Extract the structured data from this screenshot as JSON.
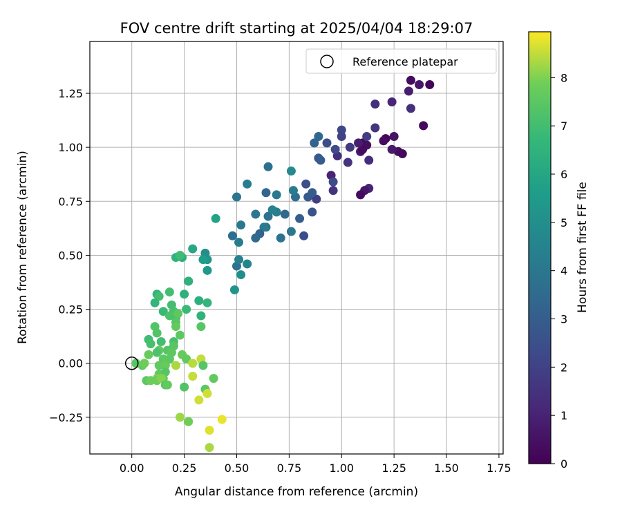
{
  "chart_data": {
    "type": "scatter",
    "title": "FOV centre drift starting at 2025/04/04 18:29:07",
    "xlabel": "Angular distance from reference (arcmin)",
    "ylabel": "Rotation from reference (arcmin)",
    "xlim": [
      -0.2,
      1.77
    ],
    "ylim": [
      -0.42,
      1.49
    ],
    "x_ticks": [
      0.0,
      0.25,
      0.5,
      0.75,
      1.0,
      1.25,
      1.5,
      1.75
    ],
    "x_tick_labels": [
      "0.00",
      "0.25",
      "0.50",
      "0.75",
      "1.00",
      "1.25",
      "1.50",
      "1.75"
    ],
    "y_ticks": [
      -0.25,
      0.0,
      0.25,
      0.5,
      0.75,
      1.0,
      1.25
    ],
    "y_tick_labels": [
      "−0.25",
      "0.00",
      "0.25",
      "0.50",
      "0.75",
      "1.00",
      "1.25"
    ],
    "grid": true,
    "legend": {
      "placement": "top-right",
      "entries": [
        {
          "label": "Reference platepar",
          "marker": "open-circle"
        }
      ]
    },
    "reference_point": {
      "x": 0.0,
      "y": 0.0
    },
    "colorbar": {
      "label": "Hours from first FF file",
      "range": [
        0,
        8.95
      ],
      "ticks": [
        0,
        1,
        2,
        3,
        4,
        5,
        6,
        7,
        8
      ],
      "tick_labels": [
        "0",
        "1",
        "2",
        "3",
        "4",
        "5",
        "6",
        "7",
        "8"
      ],
      "colormap": "viridis"
    },
    "series": [
      {
        "color_by": "hours",
        "points": [
          [
            1.42,
            1.29,
            0.1
          ],
          [
            1.33,
            1.31,
            0.3
          ],
          [
            1.37,
            1.29,
            0.6
          ],
          [
            1.39,
            1.1,
            0.3
          ],
          [
            1.32,
            1.26,
            0.8
          ],
          [
            1.33,
            1.18,
            1.4
          ],
          [
            1.24,
            1.21,
            1.1
          ],
          [
            1.16,
            1.2,
            1.3
          ],
          [
            1.27,
            0.98,
            0.4
          ],
          [
            1.29,
            0.97,
            0.2
          ],
          [
            1.25,
            1.05,
            0.5
          ],
          [
            1.21,
            1.04,
            0.2
          ],
          [
            1.2,
            1.03,
            0.3
          ],
          [
            1.24,
            0.99,
            0.7
          ],
          [
            1.1,
            1.02,
            0.2
          ],
          [
            1.12,
            1.01,
            0.4
          ],
          [
            1.09,
            0.98,
            0.6
          ],
          [
            1.1,
            0.99,
            0.3
          ],
          [
            1.08,
            1.02,
            0.8
          ],
          [
            1.13,
            0.94,
            1.3
          ],
          [
            1.13,
            0.81,
            1.0
          ],
          [
            1.11,
            0.8,
            0.6
          ],
          [
            1.09,
            0.78,
            0.3
          ],
          [
            1.16,
            1.09,
            1.6
          ],
          [
            1.12,
            1.05,
            1.8
          ],
          [
            1.04,
            1.0,
            1.7
          ],
          [
            1.03,
            0.93,
            1.5
          ],
          [
            1.0,
            1.08,
            2.2
          ],
          [
            1.0,
            1.05,
            2.0
          ],
          [
            0.98,
            0.96,
            1.4
          ],
          [
            0.95,
            0.87,
            1.0
          ],
          [
            0.96,
            0.8,
            1.5
          ],
          [
            0.96,
            0.84,
            2.3
          ],
          [
            0.97,
            0.99,
            2.3
          ],
          [
            0.93,
            1.02,
            2.4
          ],
          [
            0.89,
            0.95,
            2.8
          ],
          [
            0.9,
            0.94,
            2.9
          ],
          [
            0.89,
            1.05,
            3.4
          ],
          [
            0.87,
            1.02,
            3.2
          ],
          [
            0.88,
            0.76,
            1.9
          ],
          [
            0.83,
            0.83,
            2.5
          ],
          [
            0.84,
            0.77,
            2.8
          ],
          [
            0.86,
            0.79,
            3.0
          ],
          [
            0.86,
            0.7,
            2.6
          ],
          [
            0.82,
            0.59,
            2.4
          ],
          [
            0.8,
            0.67,
            3.0
          ],
          [
            0.78,
            0.77,
            3.6
          ],
          [
            0.77,
            0.8,
            4.2
          ],
          [
            0.76,
            0.89,
            4.8
          ],
          [
            0.76,
            0.61,
            4.0
          ],
          [
            0.73,
            0.69,
            3.4
          ],
          [
            0.71,
            0.58,
            3.8
          ],
          [
            0.69,
            0.7,
            4.3
          ],
          [
            0.69,
            0.78,
            4.1
          ],
          [
            0.67,
            0.71,
            4.5
          ],
          [
            0.65,
            0.91,
            3.7
          ],
          [
            0.64,
            0.79,
            3.3
          ],
          [
            0.65,
            0.68,
            3.8
          ],
          [
            0.64,
            0.63,
            3.9
          ],
          [
            0.63,
            0.63,
            4.2
          ],
          [
            0.61,
            0.6,
            3.2
          ],
          [
            0.59,
            0.58,
            3.5
          ],
          [
            0.59,
            0.69,
            4.0
          ],
          [
            0.55,
            0.83,
            4.3
          ],
          [
            0.52,
            0.64,
            4.0
          ],
          [
            0.51,
            0.56,
            4.2
          ],
          [
            0.5,
            0.45,
            3.8
          ],
          [
            0.48,
            0.59,
            3.6
          ],
          [
            0.5,
            0.77,
            3.9
          ],
          [
            0.55,
            0.46,
            4.6
          ],
          [
            0.51,
            0.48,
            4.4
          ],
          [
            0.52,
            0.41,
            4.9
          ],
          [
            0.49,
            0.34,
            5.2
          ],
          [
            0.4,
            0.67,
            5.8
          ],
          [
            0.36,
            0.48,
            5.2
          ],
          [
            0.35,
            0.51,
            5.0
          ],
          [
            0.36,
            0.43,
            5.4
          ],
          [
            0.34,
            0.48,
            5.6
          ],
          [
            0.29,
            0.53,
            6.0
          ],
          [
            0.24,
            0.49,
            6.3
          ],
          [
            0.21,
            0.49,
            6.5
          ],
          [
            0.23,
            0.5,
            6.9
          ],
          [
            0.27,
            0.38,
            6.2
          ],
          [
            0.27,
            0.38,
            6.4
          ],
          [
            0.25,
            0.32,
            6.4
          ],
          [
            0.18,
            0.33,
            7.0
          ],
          [
            0.12,
            0.32,
            6.5
          ],
          [
            0.13,
            0.31,
            7.0
          ],
          [
            0.11,
            0.28,
            6.6
          ],
          [
            0.15,
            0.24,
            6.8
          ],
          [
            0.19,
            0.27,
            7.0
          ],
          [
            0.2,
            0.24,
            7.1
          ],
          [
            0.18,
            0.22,
            7.2
          ],
          [
            0.21,
            0.21,
            7.1
          ],
          [
            0.22,
            0.23,
            7.5
          ],
          [
            0.26,
            0.25,
            6.8
          ],
          [
            0.32,
            0.29,
            6.3
          ],
          [
            0.36,
            0.28,
            6.6
          ],
          [
            0.33,
            0.22,
            6.5
          ],
          [
            0.33,
            0.17,
            7.4
          ],
          [
            0.21,
            0.19,
            7.4
          ],
          [
            0.21,
            0.17,
            7.6
          ],
          [
            0.23,
            0.13,
            7.5
          ],
          [
            0.11,
            0.17,
            7.3
          ],
          [
            0.12,
            0.14,
            7.3
          ],
          [
            0.08,
            0.11,
            6.9
          ],
          [
            0.09,
            0.09,
            7.1
          ],
          [
            0.14,
            0.1,
            7.0
          ],
          [
            0.2,
            0.1,
            7.1
          ],
          [
            0.2,
            0.08,
            7.4
          ],
          [
            0.17,
            0.06,
            7.3
          ],
          [
            0.19,
            0.05,
            7.5
          ],
          [
            0.13,
            0.06,
            7.6
          ],
          [
            0.12,
            0.05,
            7.2
          ],
          [
            0.08,
            0.04,
            7.7
          ],
          [
            0.02,
            0.0,
            7.4
          ],
          [
            0.05,
            -0.01,
            7.6
          ],
          [
            0.06,
            0.0,
            7.8
          ],
          [
            0.13,
            -0.01,
            7.6
          ],
          [
            0.15,
            0.02,
            7.5
          ],
          [
            0.16,
            -0.01,
            7.7
          ],
          [
            0.18,
            0.02,
            7.5
          ],
          [
            0.13,
            -0.05,
            7.6
          ],
          [
            0.16,
            -0.04,
            7.4
          ],
          [
            0.15,
            -0.07,
            7.7
          ],
          [
            0.12,
            -0.07,
            7.9
          ],
          [
            0.12,
            -0.08,
            7.8
          ],
          [
            0.14,
            -0.07,
            8.0
          ],
          [
            0.07,
            -0.08,
            7.5
          ],
          [
            0.09,
            -0.08,
            7.8
          ],
          [
            0.16,
            -0.1,
            7.4
          ],
          [
            0.17,
            -0.1,
            7.6
          ],
          [
            0.24,
            0.04,
            7.7
          ],
          [
            0.26,
            0.02,
            7.6
          ],
          [
            0.21,
            -0.01,
            8.3
          ],
          [
            0.29,
            0.0,
            8.4
          ],
          [
            0.33,
            0.02,
            8.5
          ],
          [
            0.34,
            -0.01,
            7.4
          ],
          [
            0.29,
            -0.06,
            8.5
          ],
          [
            0.25,
            -0.11,
            7.3
          ],
          [
            0.39,
            -0.07,
            7.6
          ],
          [
            0.35,
            -0.12,
            7.5
          ],
          [
            0.36,
            -0.14,
            8.6
          ],
          [
            0.32,
            -0.17,
            8.6
          ],
          [
            0.23,
            -0.25,
            8.2
          ],
          [
            0.27,
            -0.27,
            7.8
          ],
          [
            0.37,
            -0.31,
            8.7
          ],
          [
            0.37,
            -0.39,
            8.3
          ],
          [
            0.43,
            -0.26,
            8.8
          ]
        ]
      }
    ]
  }
}
